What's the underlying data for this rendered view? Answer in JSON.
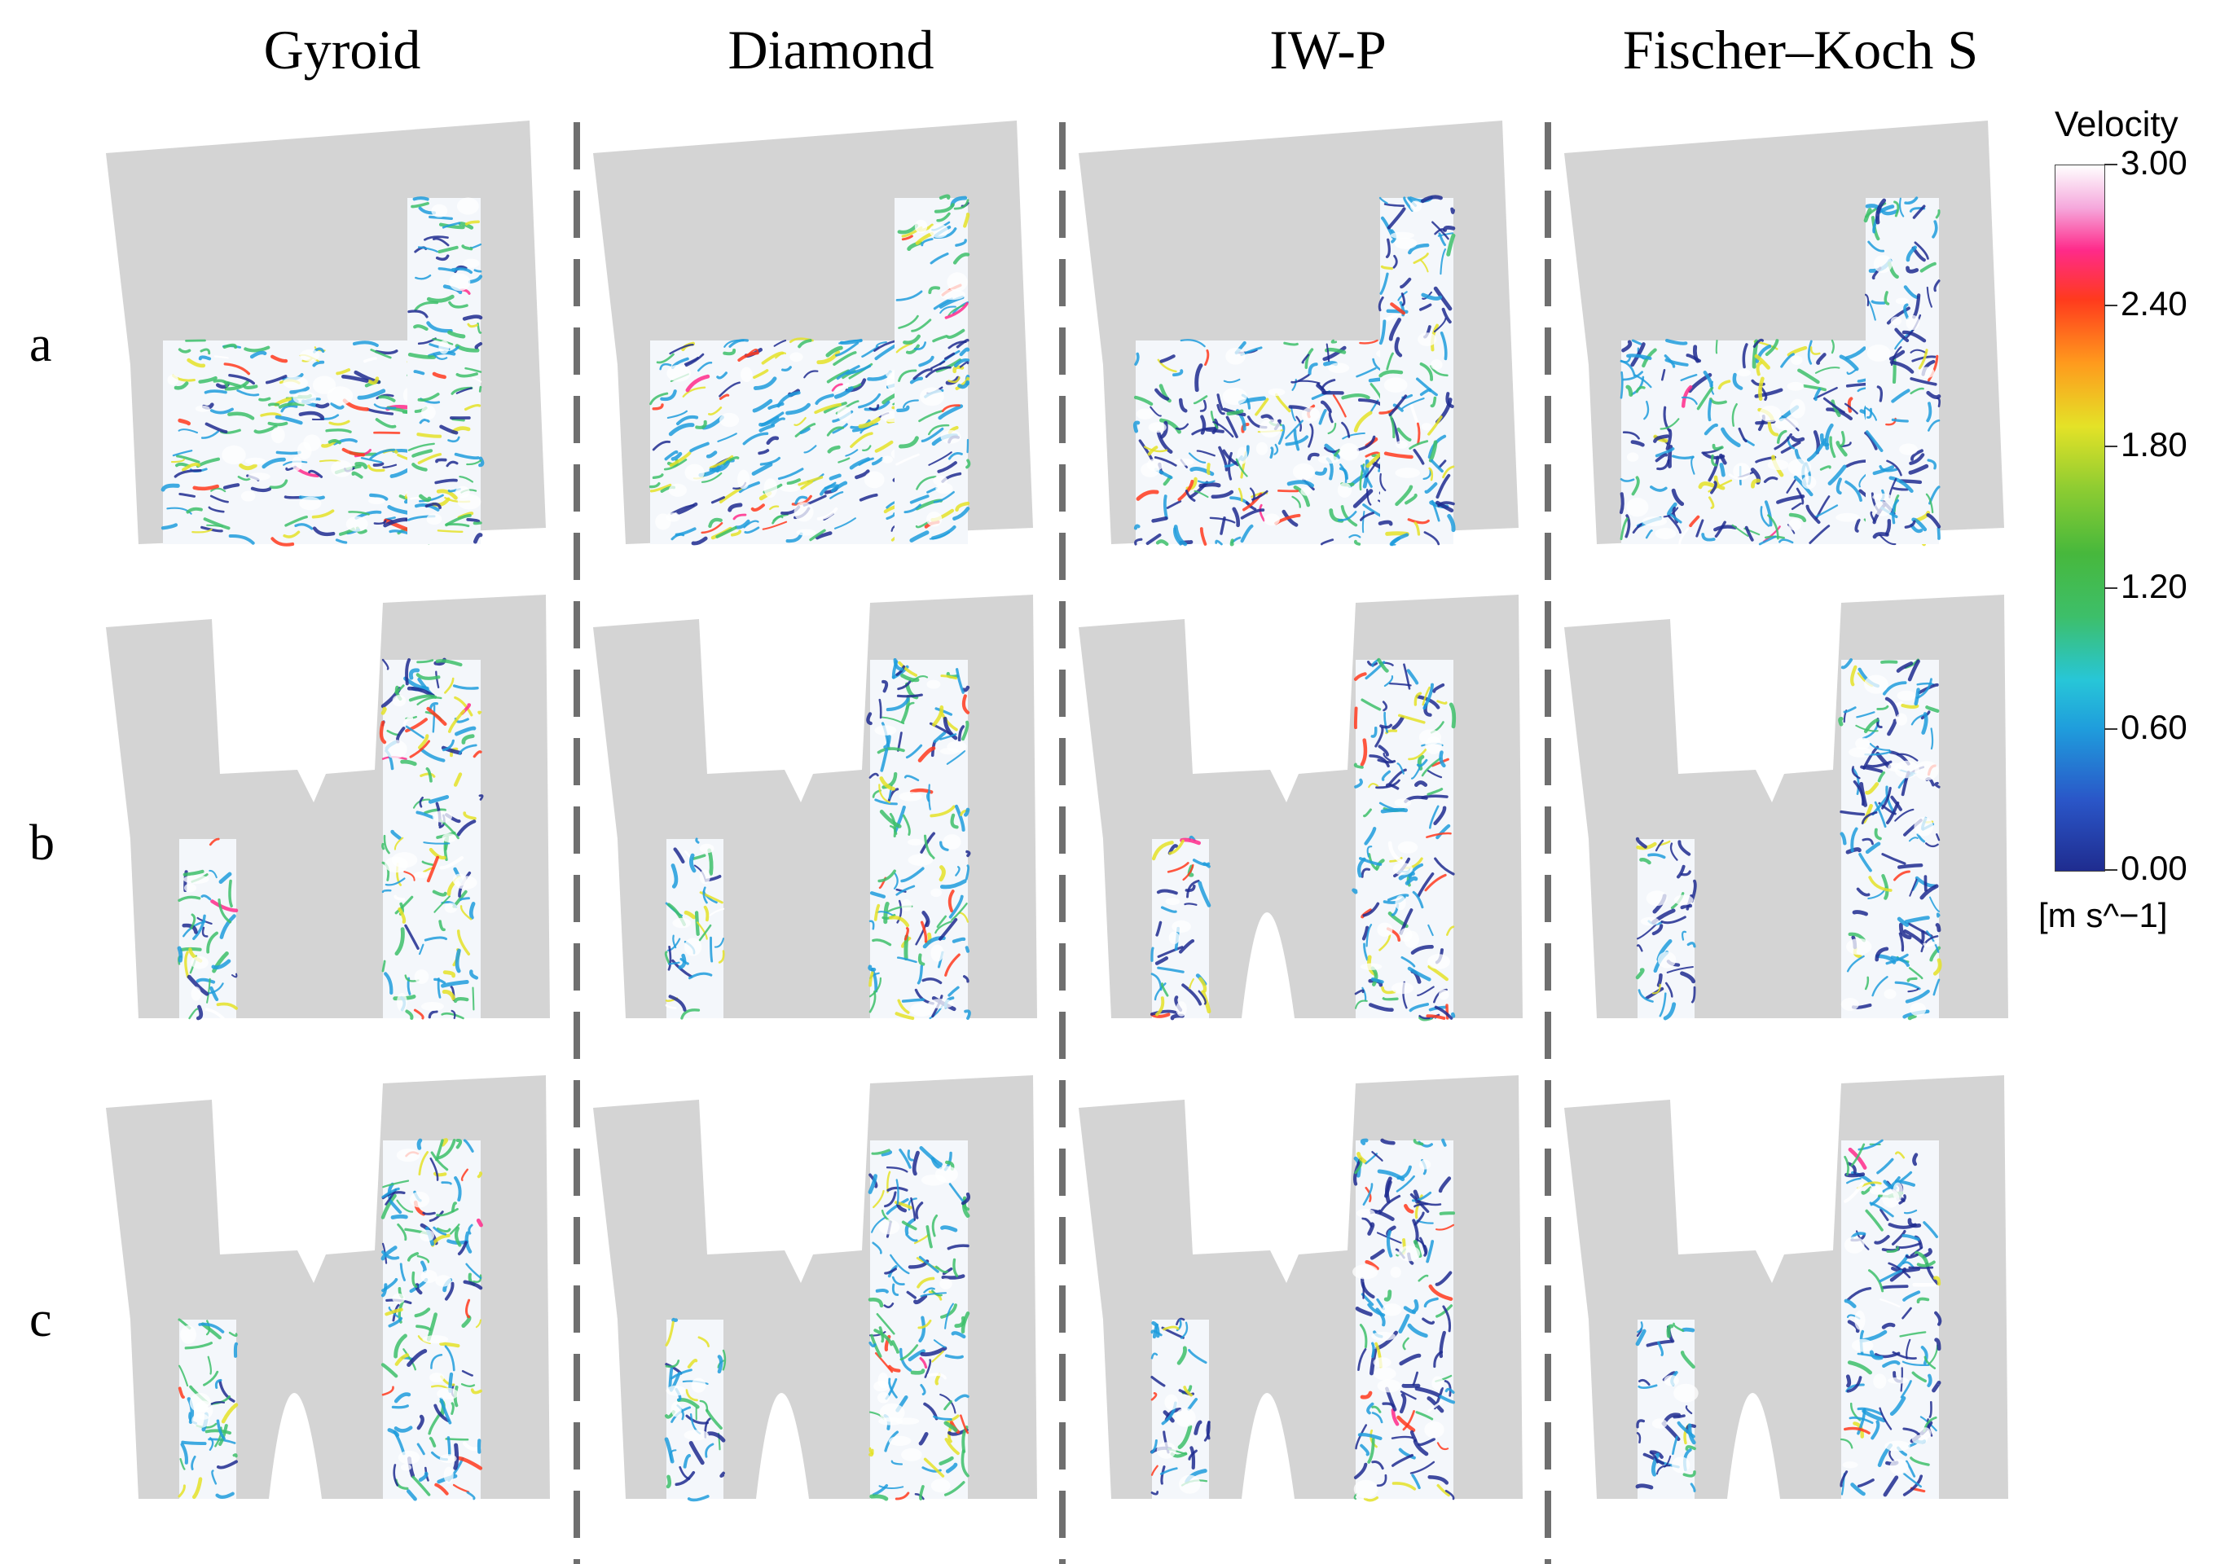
{
  "columns": [
    {
      "name": "Gyroid"
    },
    {
      "name": "Diamond"
    },
    {
      "name": "IW-P"
    },
    {
      "name": "Fischer–Koch S"
    }
  ],
  "rows": [
    {
      "label": "a"
    },
    {
      "label": "b"
    },
    {
      "label": "c"
    }
  ],
  "legend": {
    "title": "Velocity",
    "ticks": [
      "3.00",
      "2.40",
      "1.80",
      "1.20",
      "0.60",
      "0.00"
    ],
    "unit": "[m s^−1]",
    "range": [
      0,
      3
    ],
    "colors": [
      "#1f2c8f",
      "#1f9cdc",
      "#3dbf6a",
      "#e4e227",
      "#ff3a1d",
      "#ff2a8a",
      "#ffffff"
    ]
  },
  "colors": {
    "part_gray": "#d4d4d4",
    "divider": "#6f6f6f"
  }
}
